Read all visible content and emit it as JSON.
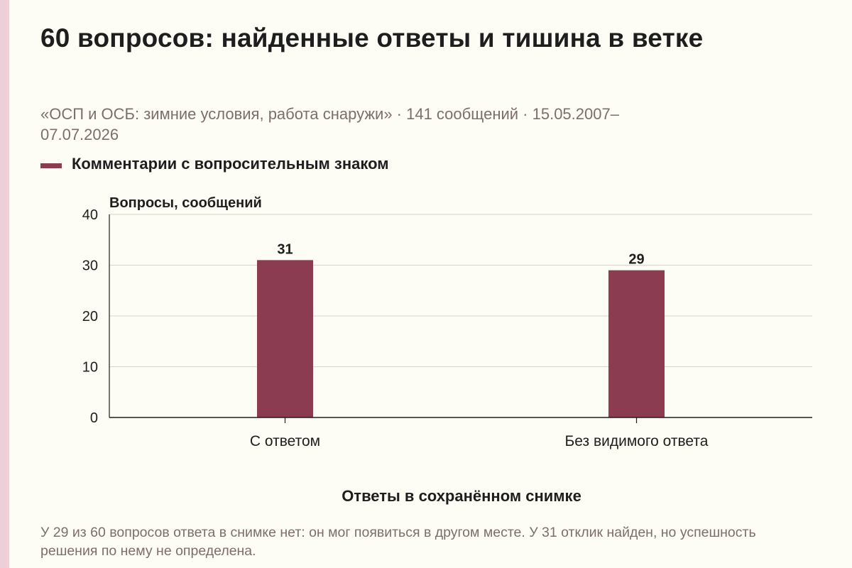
{
  "title": "60 вопросов: найденные ответы и тишина в ветке",
  "subtitle": "«ОСП и ОСБ: зимние условия, работа снаружи» · 141 сообщений · 15.05.2007–07.07.2026",
  "note": "У 29 из 60 вопросов ответа в снимке нет: он мог появиться в другом месте. У 31 отклик найден, но успешность решения по нему не определена.",
  "colors": {
    "bar": "#8b3c51",
    "grid": "#d9d4cb",
    "axis": "#1e1e1e",
    "text": "#1e1e1e",
    "muted": "#7d6e6e"
  },
  "chart_data": {
    "type": "bar",
    "categories": [
      "С ответом",
      "Без видимого ответа"
    ],
    "series": [
      {
        "name": "Комментарии с вопросительным знаком",
        "values": [
          31,
          29
        ]
      }
    ],
    "data_labels": [
      "31",
      "29"
    ],
    "ylabel": "Вопросы, сообщений",
    "xlabel": "Ответы в сохранённом снимке",
    "ylim": [
      0,
      40
    ],
    "yticks": [
      0,
      10,
      20,
      30,
      40
    ],
    "grid": true,
    "legend": "top-left"
  }
}
